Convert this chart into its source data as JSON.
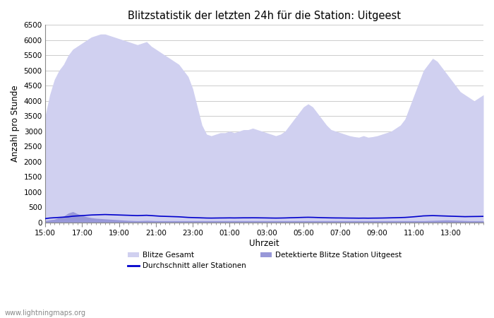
{
  "title": "Blitzstatistik der letzten 24h für die Station: Uitgeest",
  "xlabel": "Uhrzeit",
  "ylabel": "Anzahl pro Stunde",
  "ylim": [
    0,
    6500
  ],
  "background_color": "#ffffff",
  "plot_background": "#ffffff",
  "watermark": "www.lightningmaps.org",
  "x_ticks": [
    "15:00",
    "17:00",
    "19:00",
    "21:00",
    "23:00",
    "01:00",
    "03:00",
    "05:00",
    "07:00",
    "09:00",
    "11:00",
    "13:00"
  ],
  "color_gesamt": "#d0d0f0",
  "color_station": "#9898d8",
  "color_avg": "#0000cc",
  "gesamt_values": [
    3500,
    4200,
    4700,
    5000,
    5200,
    5500,
    5700,
    5800,
    5900,
    6000,
    6100,
    6150,
    6200,
    6200,
    6150,
    6100,
    6050,
    6000,
    5950,
    5900,
    5850,
    5900,
    5950,
    5800,
    5700,
    5600,
    5500,
    5400,
    5300,
    5200,
    5000,
    4800,
    4400,
    3800,
    3200,
    2900,
    2850,
    2900,
    2950,
    2950,
    3000,
    2950,
    3000,
    3050,
    3050,
    3100,
    3050,
    3000,
    2950,
    2900,
    2850,
    2900,
    3000,
    3200,
    3400,
    3600,
    3800,
    3900,
    3800,
    3600,
    3400,
    3200,
    3050,
    3000,
    2950,
    2900,
    2850,
    2820,
    2800,
    2850,
    2800,
    2820,
    2850,
    2900,
    2950,
    3000,
    3100,
    3200,
    3400,
    3800,
    4200,
    4600,
    5000,
    5200,
    5400,
    5300,
    5100,
    4900,
    4700,
    4500,
    4300,
    4200,
    4100,
    4000,
    4100,
    4200
  ],
  "station_values": [
    50,
    80,
    100,
    150,
    200,
    300,
    350,
    280,
    220,
    180,
    150,
    130,
    120,
    110,
    100,
    90,
    80,
    70,
    60,
    55,
    50,
    55,
    60,
    55,
    50,
    50,
    50,
    50,
    50,
    50,
    50,
    50,
    50,
    50,
    50,
    50,
    50,
    50,
    50,
    50,
    50,
    50,
    50,
    50,
    50,
    50,
    50,
    50,
    50,
    50,
    50,
    50,
    50,
    50,
    50,
    50,
    50,
    50,
    50,
    50,
    50,
    50,
    50,
    50,
    50,
    50,
    50,
    50,
    50,
    50,
    50,
    50,
    50,
    50,
    50,
    50,
    50,
    50,
    50,
    50,
    50,
    50,
    50,
    55,
    60,
    65,
    70,
    75,
    70,
    65,
    60,
    55,
    50,
    50,
    50,
    50
  ],
  "avg_values": [
    120,
    140,
    150,
    160,
    170,
    180,
    200,
    210,
    220,
    230,
    240,
    245,
    250,
    255,
    250,
    245,
    240,
    235,
    230,
    225,
    220,
    225,
    230,
    220,
    210,
    200,
    195,
    190,
    185,
    180,
    170,
    160,
    155,
    150,
    145,
    140,
    138,
    140,
    142,
    143,
    145,
    143,
    145,
    147,
    147,
    148,
    147,
    145,
    143,
    140,
    138,
    140,
    143,
    148,
    152,
    157,
    162,
    165,
    162,
    157,
    152,
    148,
    145,
    143,
    142,
    140,
    138,
    137,
    135,
    137,
    135,
    137,
    138,
    140,
    143,
    147,
    150,
    155,
    160,
    170,
    182,
    195,
    210,
    215,
    220,
    215,
    210,
    205,
    200,
    195,
    190,
    185,
    188,
    190,
    192,
    195
  ]
}
